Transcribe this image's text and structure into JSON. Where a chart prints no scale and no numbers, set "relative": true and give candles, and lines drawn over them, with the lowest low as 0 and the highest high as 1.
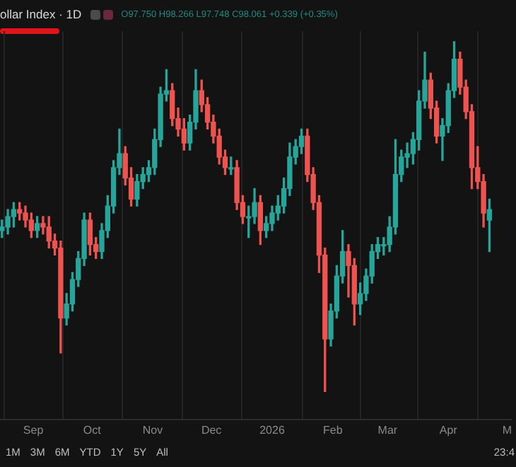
{
  "chart_data": {
    "type": "candlestick",
    "title": "ollar Index · 1D",
    "relative": true,
    "grid": "x",
    "annotations": [
      "O97.750 H98.266 L97.748 C98.061 +0.339 (+0.35%)",
      "1M",
      "3M",
      "6M",
      "YTD",
      "1Y",
      "5Y",
      "All",
      "23:4"
    ],
    "xlim": [
      "2025-08-15",
      "2026-05-03"
    ],
    "xticks": [
      {
        "value": "2025-09-01",
        "label": "Sep"
      },
      {
        "value": "2025-10-01",
        "label": "Oct"
      },
      {
        "value": "2025-11-01",
        "label": "Nov"
      },
      {
        "value": "2025-12-01",
        "label": "Dec"
      },
      {
        "value": "2026-01-01",
        "label": "2026"
      },
      {
        "value": "2026-02-01",
        "label": "Feb"
      },
      {
        "value": "2026-03-01",
        "label": "Mar"
      },
      {
        "value": "2026-04-01",
        "label": "Apr"
      },
      {
        "value": "2026-05-01",
        "label": "M"
      }
    ],
    "x": [
      "2025-08-16",
      "2025-08-19",
      "2025-08-22",
      "2025-08-25",
      "2025-08-28",
      "2025-08-31",
      "2025-09-03",
      "2025-09-06",
      "2025-09-09",
      "2025-09-12",
      "2025-09-15",
      "2025-09-18",
      "2025-09-21",
      "2025-09-24",
      "2025-09-27",
      "2025-09-30",
      "2025-10-03",
      "2025-10-06",
      "2025-10-09",
      "2025-10-12",
      "2025-10-15",
      "2025-10-18",
      "2025-10-21",
      "2025-10-24",
      "2025-10-27",
      "2025-10-30",
      "2025-11-02",
      "2025-11-05",
      "2025-11-08",
      "2025-11-11",
      "2025-11-14",
      "2025-11-17",
      "2025-11-20",
      "2025-11-23",
      "2025-11-26",
      "2025-11-29",
      "2025-12-02",
      "2025-12-05",
      "2025-12-08",
      "2025-12-11",
      "2025-12-14",
      "2025-12-17",
      "2025-12-20",
      "2025-12-23",
      "2025-12-26",
      "2025-12-29",
      "2026-01-01",
      "2026-01-04",
      "2026-01-07",
      "2026-01-10",
      "2026-01-13",
      "2026-01-16",
      "2026-01-19",
      "2026-01-22",
      "2026-01-25",
      "2026-01-28",
      "2026-01-31",
      "2026-02-03",
      "2026-02-06",
      "2026-02-09",
      "2026-02-12",
      "2026-02-15",
      "2026-02-18",
      "2026-02-21",
      "2026-02-24",
      "2026-02-27",
      "2026-03-02",
      "2026-03-05",
      "2026-03-08",
      "2026-03-11",
      "2026-03-14",
      "2026-03-17",
      "2026-03-20",
      "2026-03-23",
      "2026-03-26",
      "2026-03-29",
      "2026-04-01",
      "2026-04-04",
      "2026-04-07",
      "2026-04-10",
      "2026-04-13",
      "2026-04-16",
      "2026-04-19",
      "2026-04-22"
    ],
    "ohlc": [
      [
        0.46,
        0.49,
        0.44,
        0.47
      ],
      [
        0.47,
        0.52,
        0.45,
        0.5
      ],
      [
        0.5,
        0.54,
        0.47,
        0.52
      ],
      [
        0.52,
        0.54,
        0.49,
        0.51
      ],
      [
        0.51,
        0.53,
        0.47,
        0.49
      ],
      [
        0.49,
        0.51,
        0.44,
        0.46
      ],
      [
        0.46,
        0.5,
        0.44,
        0.48
      ],
      [
        0.48,
        0.5,
        0.45,
        0.47
      ],
      [
        0.47,
        0.5,
        0.41,
        0.43
      ],
      [
        0.43,
        0.45,
        0.39,
        0.41
      ],
      [
        0.41,
        0.43,
        0.11,
        0.21
      ],
      [
        0.21,
        0.28,
        0.19,
        0.25
      ],
      [
        0.25,
        0.34,
        0.23,
        0.32
      ],
      [
        0.32,
        0.4,
        0.3,
        0.38
      ],
      [
        0.38,
        0.51,
        0.36,
        0.49
      ],
      [
        0.49,
        0.51,
        0.39,
        0.42
      ],
      [
        0.42,
        0.44,
        0.38,
        0.4
      ],
      [
        0.4,
        0.48,
        0.38,
        0.46
      ],
      [
        0.46,
        0.56,
        0.44,
        0.53
      ],
      [
        0.53,
        0.66,
        0.51,
        0.64
      ],
      [
        0.64,
        0.75,
        0.62,
        0.68
      ],
      [
        0.68,
        0.7,
        0.59,
        0.61
      ],
      [
        0.61,
        0.64,
        0.53,
        0.55
      ],
      [
        0.55,
        0.62,
        0.53,
        0.6
      ],
      [
        0.6,
        0.64,
        0.58,
        0.62
      ],
      [
        0.62,
        0.66,
        0.6,
        0.64
      ],
      [
        0.64,
        0.75,
        0.62,
        0.72
      ],
      [
        0.72,
        0.87,
        0.7,
        0.85
      ],
      [
        0.85,
        0.92,
        0.83,
        0.86
      ],
      [
        0.86,
        0.88,
        0.76,
        0.78
      ],
      [
        0.78,
        0.81,
        0.73,
        0.75
      ],
      [
        0.75,
        0.78,
        0.69,
        0.71
      ],
      [
        0.71,
        0.79,
        0.69,
        0.77
      ],
      [
        0.77,
        0.92,
        0.75,
        0.86
      ],
      [
        0.86,
        0.89,
        0.8,
        0.82
      ],
      [
        0.82,
        0.84,
        0.75,
        0.77
      ],
      [
        0.77,
        0.79,
        0.71,
        0.73
      ],
      [
        0.73,
        0.75,
        0.65,
        0.67
      ],
      [
        0.67,
        0.69,
        0.62,
        0.64
      ],
      [
        0.64,
        0.67,
        0.62,
        0.64
      ],
      [
        0.64,
        0.66,
        0.52,
        0.54
      ],
      [
        0.54,
        0.56,
        0.48,
        0.5
      ],
      [
        0.5,
        0.53,
        0.44,
        0.5
      ],
      [
        0.5,
        0.58,
        0.48,
        0.54
      ],
      [
        0.54,
        0.56,
        0.42,
        0.46
      ],
      [
        0.46,
        0.5,
        0.44,
        0.48
      ],
      [
        0.48,
        0.53,
        0.46,
        0.51
      ],
      [
        0.51,
        0.56,
        0.49,
        0.53
      ],
      [
        0.53,
        0.61,
        0.51,
        0.58
      ],
      [
        0.58,
        0.71,
        0.56,
        0.67
      ],
      [
        0.67,
        0.72,
        0.65,
        0.7
      ],
      [
        0.7,
        0.75,
        0.68,
        0.73
      ],
      [
        0.73,
        0.75,
        0.6,
        0.62
      ],
      [
        0.62,
        0.64,
        0.52,
        0.54
      ],
      [
        0.54,
        0.56,
        0.34,
        0.39
      ],
      [
        0.39,
        0.41,
        0,
        0.15
      ],
      [
        0.15,
        0.25,
        0.13,
        0.23
      ],
      [
        0.23,
        0.36,
        0.21,
        0.33
      ],
      [
        0.33,
        0.46,
        0.31,
        0.4
      ],
      [
        0.4,
        0.42,
        0.27,
        0.36
      ],
      [
        0.36,
        0.38,
        0.19,
        0.25
      ],
      [
        0.25,
        0.31,
        0.22,
        0.28
      ],
      [
        0.28,
        0.35,
        0.26,
        0.33
      ],
      [
        0.33,
        0.42,
        0.31,
        0.4
      ],
      [
        0.4,
        0.44,
        0.38,
        0.42
      ],
      [
        0.42,
        0.44,
        0.39,
        0.42
      ],
      [
        0.42,
        0.5,
        0.4,
        0.47
      ],
      [
        0.47,
        0.72,
        0.45,
        0.62
      ],
      [
        0.62,
        0.69,
        0.6,
        0.67
      ],
      [
        0.67,
        0.71,
        0.64,
        0.68
      ],
      [
        0.68,
        0.74,
        0.65,
        0.72
      ],
      [
        0.72,
        0.86,
        0.69,
        0.83
      ],
      [
        0.83,
        0.97,
        0.81,
        0.89
      ],
      [
        0.89,
        0.91,
        0.78,
        0.81
      ],
      [
        0.81,
        0.83,
        0.71,
        0.73
      ],
      [
        0.73,
        0.78,
        0.66,
        0.76
      ],
      [
        0.76,
        0.88,
        0.74,
        0.86
      ],
      [
        0.86,
        1,
        0.84,
        0.95
      ],
      [
        0.95,
        0.97,
        0.85,
        0.87
      ],
      [
        0.87,
        0.89,
        0.78,
        0.8
      ],
      [
        0.8,
        0.82,
        0.58,
        0.64
      ],
      [
        0.64,
        0.7,
        0.58,
        0.6
      ],
      [
        0.6,
        0.62,
        0.47,
        0.51
      ],
      [
        0.49,
        0.55,
        0.4,
        0.52
      ]
    ],
    "colors": [
      "#26a69a",
      "#26a69a",
      "#26a69a",
      "#ef5350",
      "#ef5350",
      "#ef5350",
      "#26a69a",
      "#ef5350",
      "#ef5350",
      "#ef5350",
      "#ef5350",
      "#26a69a",
      "#26a69a",
      "#26a69a",
      "#26a69a",
      "#ef5350",
      "#ef5350",
      "#26a69a",
      "#26a69a",
      "#26a69a",
      "#26a69a",
      "#ef5350",
      "#ef5350",
      "#26a69a",
      "#26a69a",
      "#26a69a",
      "#26a69a",
      "#26a69a",
      "#26a69a",
      "#ef5350",
      "#ef5350",
      "#ef5350",
      "#26a69a",
      "#26a69a",
      "#ef5350",
      "#ef5350",
      "#ef5350",
      "#ef5350",
      "#ef5350",
      "#26a69a",
      "#ef5350",
      "#ef5350",
      "#26a69a",
      "#26a69a",
      "#ef5350",
      "#26a69a",
      "#26a69a",
      "#26a69a",
      "#26a69a",
      "#26a69a",
      "#26a69a",
      "#26a69a",
      "#ef5350",
      "#ef5350",
      "#ef5350",
      "#ef5350",
      "#26a69a",
      "#26a69a",
      "#26a69a",
      "#ef5350",
      "#ef5350",
      "#26a69a",
      "#26a69a",
      "#26a69a",
      "#26a69a",
      "#26a69a",
      "#26a69a",
      "#26a69a",
      "#26a69a",
      "#26a69a",
      "#26a69a",
      "#26a69a",
      "#26a69a",
      "#ef5350",
      "#ef5350",
      "#26a69a",
      "#26a69a",
      "#26a69a",
      "#ef5350",
      "#ef5350",
      "#ef5350",
      "#ef5350",
      "#ef5350",
      "#26a69a"
    ]
  }
}
